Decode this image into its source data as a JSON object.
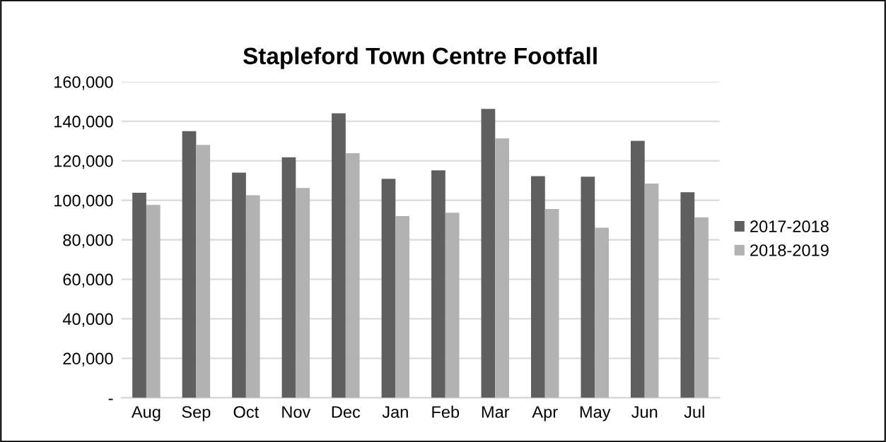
{
  "chart_data": {
    "type": "bar",
    "title": "Stapleford Town Centre Footfall",
    "categories": [
      "Aug",
      "Sep",
      "Oct",
      "Nov",
      "Dec",
      "Jan",
      "Feb",
      "Mar",
      "Apr",
      "May",
      "Jun",
      "Jul"
    ],
    "series": [
      {
        "name": "2017-2018",
        "color": "#5f5f5f",
        "values": [
          103800,
          135000,
          114000,
          121800,
          144000,
          110900,
          115200,
          146300,
          112200,
          111900,
          130100,
          104100
        ]
      },
      {
        "name": "2018-2019",
        "color": "#b2b2b2",
        "values": [
          97600,
          128000,
          102600,
          106200,
          123800,
          92000,
          93700,
          131300,
          95600,
          86100,
          108500,
          91400
        ]
      }
    ],
    "ylim": [
      0,
      160000
    ],
    "yticks": [
      {
        "value": 0,
        "label": "-"
      },
      {
        "value": 20000,
        "label": "20,000"
      },
      {
        "value": 40000,
        "label": "40,000"
      },
      {
        "value": 60000,
        "label": "60,000"
      },
      {
        "value": 80000,
        "label": "80,000"
      },
      {
        "value": 100000,
        "label": "100,000"
      },
      {
        "value": 120000,
        "label": "120,000"
      },
      {
        "value": 140000,
        "label": "140,000"
      },
      {
        "value": 160000,
        "label": "160,000"
      }
    ],
    "grid": "y",
    "legend": "right"
  }
}
